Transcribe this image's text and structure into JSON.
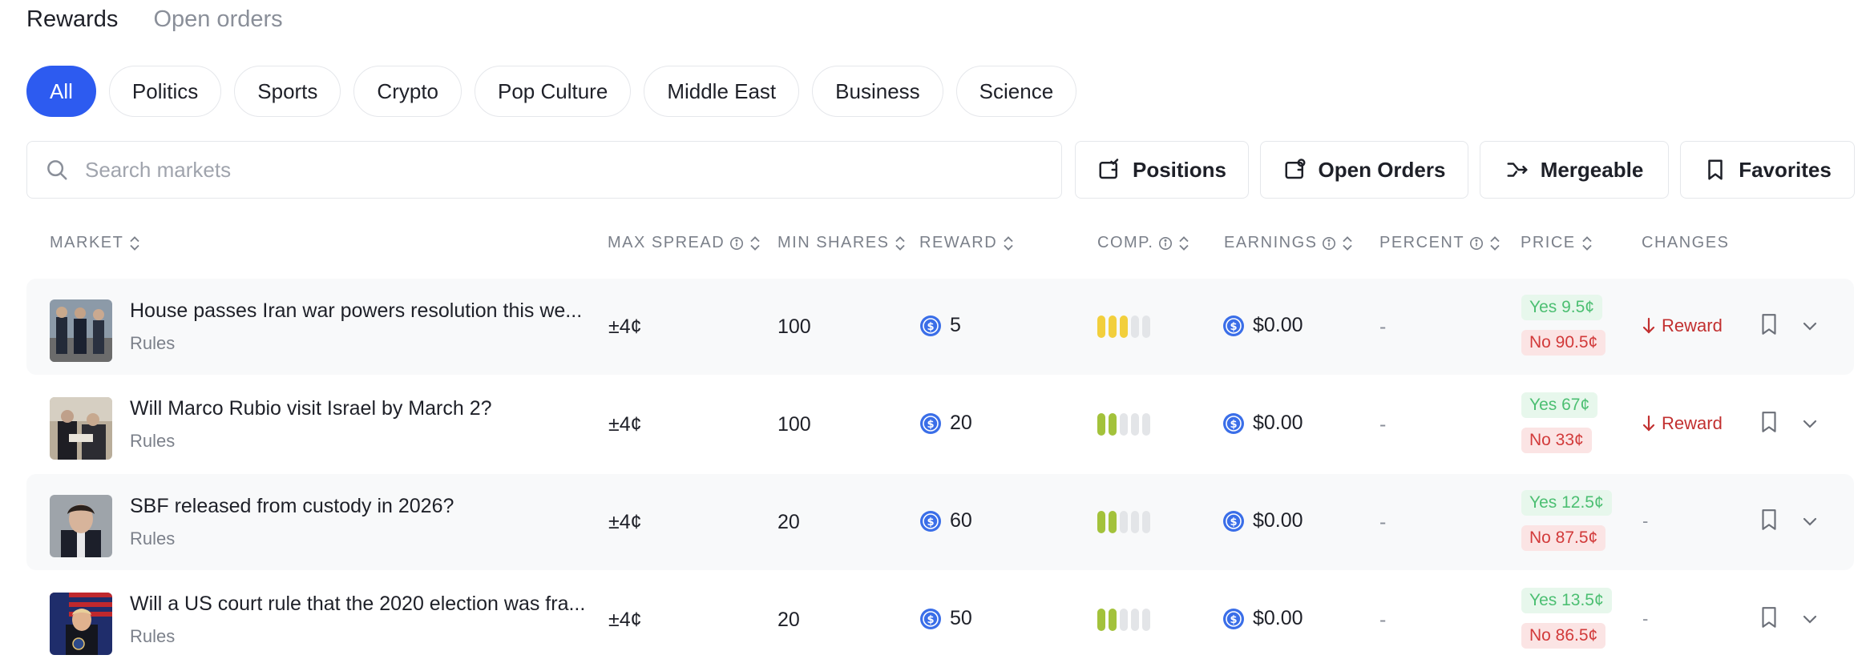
{
  "top_tabs": {
    "rewards": "Rewards",
    "open_orders": "Open orders"
  },
  "categories": [
    "All",
    "Politics",
    "Sports",
    "Crypto",
    "Pop Culture",
    "Middle East",
    "Business",
    "Science"
  ],
  "search": {
    "placeholder": "Search markets"
  },
  "filters": {
    "positions": "Positions",
    "open_orders": "Open Orders",
    "mergeable": "Mergeable",
    "favorites": "Favorites"
  },
  "columns": {
    "market": "MARKET",
    "max_spread": "MAX SPREAD",
    "min_shares": "MIN SHARES",
    "reward": "REWARD",
    "comp": "COMP.",
    "earnings": "EARNINGS",
    "percent": "PERCENT",
    "price": "PRICE",
    "changes": "CHANGES"
  },
  "colors": {
    "accent": "#2d5bf0",
    "comp_high": "#f2cf3c",
    "comp_low": "#a3c23b",
    "yes": "#4cbf72",
    "no": "#d23a3a"
  },
  "rows": [
    {
      "title": "House passes Iran war powers resolution this we...",
      "rules": "Rules",
      "max_spread": "±4¢",
      "min_shares": "100",
      "reward": "5",
      "comp_level": 3,
      "comp_color": "#f2cf3c",
      "earnings": "$0.00",
      "percent": "-",
      "yes": "Yes 9.5¢",
      "no": "No 90.5¢",
      "change": "Reward",
      "change_icon": "arrow-down-icon"
    },
    {
      "title": "Will Marco Rubio visit Israel by March 2?",
      "rules": "Rules",
      "max_spread": "±4¢",
      "min_shares": "100",
      "reward": "20",
      "comp_level": 2,
      "comp_color": "#a3c23b",
      "earnings": "$0.00",
      "percent": "-",
      "yes": "Yes 67¢",
      "no": "No 33¢",
      "change": "Reward",
      "change_icon": "arrow-down-icon"
    },
    {
      "title": "SBF released from custody in 2026?",
      "rules": "Rules",
      "max_spread": "±4¢",
      "min_shares": "20",
      "reward": "60",
      "comp_level": 2,
      "comp_color": "#a3c23b",
      "earnings": "$0.00",
      "percent": "-",
      "yes": "Yes 12.5¢",
      "no": "No 87.5¢",
      "change": "-",
      "change_icon": ""
    },
    {
      "title": "Will a US court rule that the 2020 election was fra...",
      "rules": "Rules",
      "max_spread": "±4¢",
      "min_shares": "20",
      "reward": "50",
      "comp_level": 2,
      "comp_color": "#a3c23b",
      "earnings": "$0.00",
      "percent": "-",
      "yes": "Yes 13.5¢",
      "no": "No 86.5¢",
      "change": "-",
      "change_icon": ""
    }
  ]
}
